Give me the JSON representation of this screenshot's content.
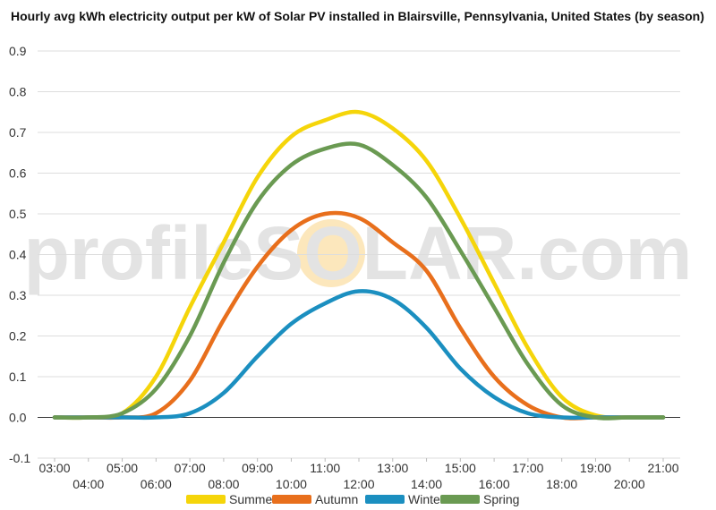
{
  "chart_data": {
    "type": "line",
    "title": "Hourly avg kWh electricity output per kW of Solar PV installed in Blairsville, Pennsylvania, United States (by season)",
    "xlabel": "",
    "ylabel": "",
    "x_ticks": [
      "03:00",
      "04:00",
      "05:00",
      "06:00",
      "07:00",
      "08:00",
      "09:00",
      "10:00",
      "11:00",
      "12:00",
      "13:00",
      "14:00",
      "15:00",
      "16:00",
      "17:00",
      "18:00",
      "19:00",
      "20:00",
      "21:00"
    ],
    "y_ticks": [
      "0.9",
      "0.8",
      "0.7",
      "0.6",
      "0.5",
      "0.4",
      "0.3",
      "0.2",
      "0.1",
      "0.0",
      "-0.1"
    ],
    "ylim": [
      -0.1,
      0.9
    ],
    "grid": true,
    "legend_position": "bottom",
    "watermark": "profileSOLAR.com",
    "series": [
      {
        "name": "Summer",
        "color": "#f5d50a",
        "values": [
          0.0,
          0.0,
          0.01,
          0.1,
          0.27,
          0.43,
          0.59,
          0.69,
          0.73,
          0.75,
          0.71,
          0.63,
          0.49,
          0.33,
          0.17,
          0.05,
          0.005,
          0.0,
          0.0
        ]
      },
      {
        "name": "Autumn",
        "color": "#e86f1c",
        "values": [
          0.0,
          0.0,
          0.0,
          0.01,
          0.09,
          0.24,
          0.37,
          0.46,
          0.5,
          0.49,
          0.43,
          0.36,
          0.22,
          0.1,
          0.03,
          0.0,
          0.0,
          0.0,
          0.0
        ]
      },
      {
        "name": "Winter",
        "color": "#1b8fc0",
        "values": [
          0.0,
          0.0,
          0.0,
          0.0,
          0.01,
          0.06,
          0.15,
          0.23,
          0.28,
          0.31,
          0.29,
          0.22,
          0.12,
          0.05,
          0.01,
          0.0,
          0.0,
          0.0,
          0.0
        ]
      },
      {
        "name": "Spring",
        "color": "#6a9a52",
        "values": [
          0.0,
          0.0,
          0.01,
          0.07,
          0.2,
          0.38,
          0.53,
          0.62,
          0.66,
          0.67,
          0.62,
          0.54,
          0.41,
          0.27,
          0.13,
          0.03,
          0.0,
          0.0,
          0.0
        ]
      }
    ]
  }
}
